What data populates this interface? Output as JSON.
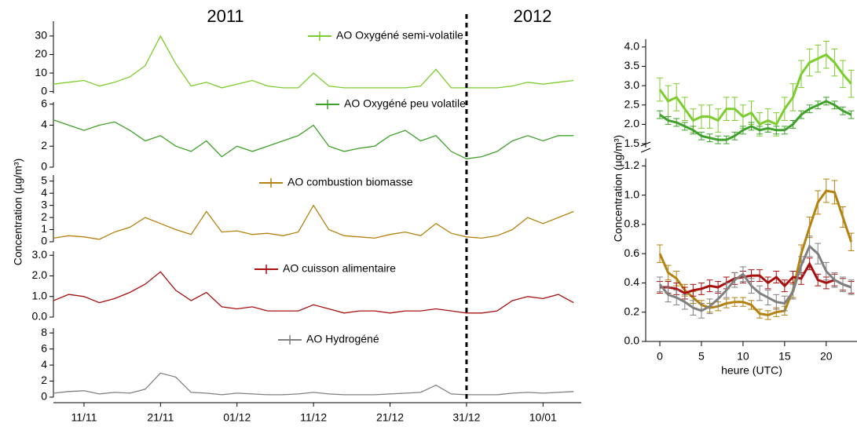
{
  "chart_data": [
    {
      "type": "line",
      "annotations": [
        "2011",
        "2012"
      ],
      "ylabel": "Concentration (µg/m³)",
      "divider": "2011-12-31",
      "xlim": [
        "2011-11-07",
        "2012-01-15"
      ],
      "xticks": [
        {
          "value": "2011-11-11",
          "label": "11/11"
        },
        {
          "value": "2011-11-21",
          "label": "21/11"
        },
        {
          "value": "2011-12-01",
          "label": "01/12"
        },
        {
          "value": "2011-12-11",
          "label": "11/12"
        },
        {
          "value": "2011-12-21",
          "label": "21/12"
        },
        {
          "value": "2011-12-31",
          "label": "31/12"
        },
        {
          "value": "2012-01-10",
          "label": "10/01"
        }
      ],
      "x": [
        "2011-11-07",
        "2011-11-09",
        "2011-11-11",
        "2011-11-13",
        "2011-11-15",
        "2011-11-17",
        "2011-11-19",
        "2011-11-21",
        "2011-11-23",
        "2011-11-25",
        "2011-11-27",
        "2011-11-29",
        "2011-12-01",
        "2011-12-03",
        "2011-12-05",
        "2011-12-07",
        "2011-12-09",
        "2011-12-11",
        "2011-12-13",
        "2011-12-15",
        "2011-12-17",
        "2011-12-19",
        "2011-12-21",
        "2011-12-23",
        "2011-12-25",
        "2011-12-27",
        "2011-12-29",
        "2011-12-31",
        "2012-01-02",
        "2012-01-04",
        "2012-01-06",
        "2012-01-08",
        "2012-01-10",
        "2012-01-12",
        "2012-01-14"
      ],
      "series": [
        {
          "name": "AO Oxygéné semi-volatile",
          "color": "#7ccd2e",
          "ylim": [
            -1,
            38
          ],
          "yticks": [
            0,
            10,
            20,
            30
          ],
          "values": [
            4,
            5,
            6,
            3,
            5,
            8,
            14,
            30,
            15,
            3,
            5,
            2,
            4,
            6,
            3,
            2,
            2,
            10,
            3,
            2,
            2,
            2,
            2,
            2,
            3,
            12,
            2,
            2,
            2,
            2,
            3,
            5,
            4,
            5,
            6
          ]
        },
        {
          "name": "AO Oxygéné peu volatile",
          "color": "#3fa12a",
          "ylim": [
            0,
            6.2
          ],
          "yticks": [
            0,
            2,
            4,
            6
          ],
          "values": [
            4.5,
            4,
            3.5,
            4,
            4.3,
            3.5,
            2.5,
            3,
            2,
            1.5,
            2.5,
            1,
            2,
            1.5,
            2,
            2.5,
            3,
            4,
            2,
            1.5,
            1.8,
            2,
            3,
            3.5,
            2.5,
            3,
            1.5,
            0.8,
            1,
            1.5,
            2.5,
            3,
            2.5,
            3,
            3
          ]
        },
        {
          "name": "AO combustion biomasse",
          "color": "#b5820f",
          "ylim": [
            0,
            5.5
          ],
          "yticks": [
            0,
            1,
            2,
            3,
            4,
            5
          ],
          "values": [
            0.3,
            0.5,
            0.4,
            0.2,
            0.8,
            1.2,
            2,
            1.5,
            1,
            0.6,
            2.5,
            0.8,
            0.9,
            0.6,
            0.7,
            0.5,
            0.8,
            3,
            1,
            0.5,
            0.4,
            0.3,
            0.6,
            0.8,
            0.5,
            1.5,
            0.7,
            0.4,
            0.3,
            0.5,
            1,
            2,
            1.5,
            2,
            2.5
          ]
        },
        {
          "name": "AO cuisson alimentaire",
          "color": "#a81010",
          "ylim": [
            0,
            3.2
          ],
          "yticks": [
            {
              "value": 0,
              "label": "0.0"
            },
            {
              "value": 1,
              "label": "1.0"
            },
            {
              "value": 2,
              "label": "2.0"
            },
            {
              "value": 3,
              "label": "3.0"
            }
          ],
          "values": [
            0.8,
            1.1,
            1,
            0.7,
            0.9,
            1.2,
            1.6,
            2.2,
            1.3,
            0.8,
            1.2,
            0.5,
            0.4,
            0.5,
            0.3,
            0.3,
            0.3,
            0.6,
            0.4,
            0.2,
            0.3,
            0.3,
            0.2,
            0.3,
            0.3,
            0.4,
            0.3,
            0.2,
            0.2,
            0.3,
            0.8,
            1,
            0.9,
            1.1,
            0.7
          ]
        },
        {
          "name": "AO Hydrogéné",
          "color": "#808080",
          "ylim": [
            0,
            8.6
          ],
          "yticks": [
            0,
            2,
            4,
            6,
            8
          ],
          "values": [
            0.5,
            0.7,
            0.8,
            0.4,
            0.6,
            0.5,
            1,
            3,
            2.5,
            0.6,
            0.5,
            0.3,
            0.5,
            0.4,
            0.3,
            0.3,
            0.4,
            0.6,
            0.4,
            0.3,
            0.3,
            0.3,
            0.4,
            0.5,
            0.6,
            1.5,
            0.4,
            0.3,
            0.3,
            0.3,
            0.5,
            0.6,
            0.5,
            0.6,
            0.7
          ]
        }
      ]
    },
    {
      "type": "line",
      "ylabel": "Concentration (µg/m³)",
      "xlabel": "heure (UTC)",
      "xlim": [
        -1.7,
        23.7
      ],
      "xticks": [
        0,
        5,
        10,
        15,
        20
      ],
      "x": [
        0,
        1,
        2,
        3,
        4,
        5,
        6,
        7,
        8,
        9,
        10,
        11,
        12,
        13,
        14,
        15,
        16,
        17,
        18,
        19,
        20,
        21,
        22,
        23
      ],
      "y2lim": [
        1.4,
        4.2
      ],
      "y2ticks": [
        {
          "value": 1.5,
          "label": "1.5"
        },
        {
          "value": 2,
          "label": "2.0"
        },
        {
          "value": 2.5,
          "label": "2.5"
        },
        {
          "value": 3,
          "label": "3.0"
        },
        {
          "value": 3.5,
          "label": "3.5"
        },
        {
          "value": 4,
          "label": "4.0"
        }
      ],
      "ylim": [
        0,
        1.25
      ],
      "yticks": [
        {
          "value": 0,
          "label": "0.0"
        },
        {
          "value": 0.2,
          "label": "0.2"
        },
        {
          "value": 0.4,
          "label": "0.4"
        },
        {
          "value": 0.6,
          "label": "0.6"
        },
        {
          "value": 0.8,
          "label": "0.8"
        },
        {
          "value": 1,
          "label": "1.0"
        },
        {
          "value": 1.2,
          "label": "1.2"
        }
      ],
      "series": [
        {
          "color": "#7ccd2e",
          "axis": "y2",
          "values": [
            2.9,
            2.6,
            2.7,
            2.4,
            2.1,
            2.2,
            2.2,
            2.1,
            2.4,
            2.4,
            2.2,
            2.3,
            2.0,
            2.1,
            2.0,
            2.4,
            2.7,
            3.3,
            3.6,
            3.7,
            3.8,
            3.6,
            3.3,
            3.05
          ],
          "errors": [
            0.3,
            0.4,
            0.35,
            0.3,
            0.3,
            0.3,
            0.3,
            0.3,
            0.3,
            0.3,
            0.3,
            0.3,
            0.3,
            0.3,
            0.3,
            0.3,
            0.35,
            0.35,
            0.35,
            0.35,
            0.35,
            0.35,
            0.35,
            0.35
          ]
        },
        {
          "color": "#3fa12a",
          "axis": "y2",
          "values": [
            2.25,
            2.1,
            2.05,
            1.95,
            1.85,
            1.7,
            1.65,
            1.6,
            1.6,
            1.7,
            1.85,
            1.95,
            1.85,
            1.9,
            1.85,
            1.85,
            2.0,
            2.25,
            2.4,
            2.5,
            2.6,
            2.5,
            2.35,
            2.25
          ],
          "errors": [
            0.1,
            0.1,
            0.1,
            0.1,
            0.1,
            0.1,
            0.1,
            0.1,
            0.1,
            0.1,
            0.1,
            0.1,
            0.1,
            0.1,
            0.1,
            0.1,
            0.1,
            0.1,
            0.1,
            0.1,
            0.1,
            0.1,
            0.1,
            0.1
          ]
        },
        {
          "color": "#b5820f",
          "values": [
            0.6,
            0.47,
            0.43,
            0.35,
            0.3,
            0.25,
            0.23,
            0.24,
            0.26,
            0.27,
            0.27,
            0.25,
            0.19,
            0.18,
            0.2,
            0.21,
            0.35,
            0.6,
            0.78,
            0.95,
            1.03,
            1.02,
            0.85,
            0.68
          ],
          "errors": [
            0.06,
            0.05,
            0.05,
            0.04,
            0.04,
            0.03,
            0.03,
            0.03,
            0.03,
            0.03,
            0.03,
            0.03,
            0.03,
            0.03,
            0.03,
            0.03,
            0.05,
            0.06,
            0.07,
            0.08,
            0.08,
            0.08,
            0.07,
            0.06
          ]
        },
        {
          "color": "#a81010",
          "values": [
            0.37,
            0.37,
            0.36,
            0.33,
            0.35,
            0.36,
            0.38,
            0.37,
            0.4,
            0.43,
            0.44,
            0.45,
            0.45,
            0.4,
            0.44,
            0.38,
            0.44,
            0.43,
            0.53,
            0.42,
            0.4,
            0.42,
            0.39,
            0.37
          ],
          "errors": [
            0.04,
            0.04,
            0.04,
            0.04,
            0.04,
            0.04,
            0.04,
            0.04,
            0.04,
            0.04,
            0.04,
            0.04,
            0.04,
            0.04,
            0.04,
            0.04,
            0.04,
            0.04,
            0.04,
            0.04,
            0.04,
            0.04,
            0.04,
            0.04
          ]
        },
        {
          "color": "#808080",
          "values": [
            0.39,
            0.32,
            0.3,
            0.27,
            0.23,
            0.21,
            0.24,
            0.29,
            0.35,
            0.42,
            0.46,
            0.38,
            0.33,
            0.3,
            0.27,
            0.26,
            0.34,
            0.52,
            0.65,
            0.6,
            0.48,
            0.42,
            0.39,
            0.37
          ],
          "errors": [
            0.05,
            0.05,
            0.05,
            0.05,
            0.05,
            0.05,
            0.05,
            0.05,
            0.05,
            0.05,
            0.05,
            0.05,
            0.05,
            0.05,
            0.05,
            0.05,
            0.05,
            0.06,
            0.07,
            0.07,
            0.06,
            0.05,
            0.05,
            0.05
          ]
        }
      ]
    }
  ]
}
